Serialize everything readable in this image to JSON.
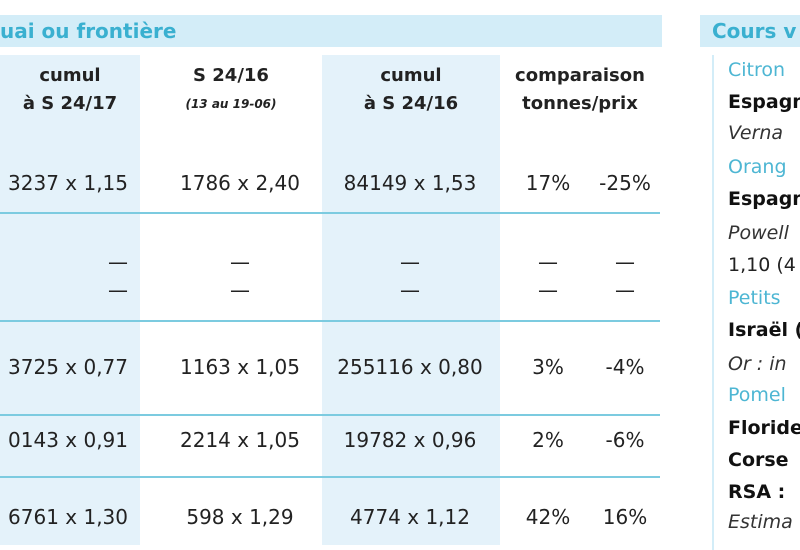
{
  "table": {
    "title": "uai ou frontière",
    "headers": [
      [
        "cumul",
        "à S 24/17"
      ],
      [
        "S 24/16",
        "(13 au 19-06)"
      ],
      [
        "cumul",
        "à S 24/16"
      ],
      [
        "comparaison",
        "tonnes/prix"
      ]
    ],
    "rows": [
      [
        "3237 x 1,15",
        "1786 x 2,40",
        "84149 x 1,53",
        "17%",
        "-25%"
      ],
      [
        "—",
        "—",
        "—",
        "—",
        "—"
      ],
      [
        "—",
        "—",
        "—",
        "—",
        "—"
      ],
      [
        "3725 x 0,77",
        "1163 x 1,05",
        "255116 x 0,80",
        "3%",
        "-4%"
      ],
      [
        "0143 x 0,91",
        "2214 x 1,05",
        "19782 x 0,96",
        "2%",
        "-6%"
      ],
      [
        "6761 x 1,30",
        "598 x 1,29",
        "4774 x 1,12",
        "42%",
        "16%"
      ]
    ]
  },
  "sidebar": {
    "title": "Cours v",
    "lines": [
      "Citron",
      "Espagn",
      "Verna",
      "Orang",
      "Espagn",
      "Powell",
      "1,10 (4",
      "Petits",
      "Israël (",
      "Or : in",
      "Pomel",
      "Floride",
      "Corse",
      "RSA : ",
      "Estima"
    ]
  }
}
